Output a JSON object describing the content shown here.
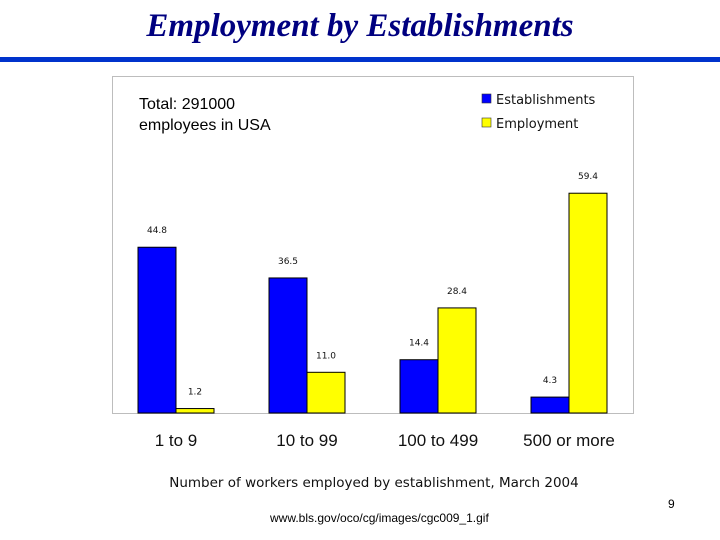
{
  "slide": {
    "title": "Employment by Establishments",
    "note_line1": "Total: 291000",
    "note_line2": "employees in USA",
    "source": "www.bls.gov/oco/cg/images/cgc009_1.gif",
    "page_number": "9"
  },
  "colors": {
    "establishments": "#0000ff",
    "employment": "#ffff00",
    "title": "#000080",
    "rule": "#0033cc"
  },
  "chart_data": {
    "type": "bar",
    "title": "",
    "categories": [
      "1 to 9",
      "10 to 99",
      "100 to 499",
      "500 or more"
    ],
    "series": [
      {
        "name": "Establishments",
        "values": [
          44.8,
          36.5,
          14.4,
          4.3
        ],
        "labels": [
          "44.8",
          "36.5",
          "14.4",
          "4.3"
        ]
      },
      {
        "name": "Employment",
        "values": [
          1.2,
          11.0,
          28.4,
          59.4
        ],
        "labels": [
          "1.2",
          "11.0",
          "28.4",
          "59.4"
        ]
      }
    ],
    "xlabel": "Number of workers employed by establishment, March 2004",
    "ylabel": "",
    "ylim": [
      0,
      60
    ],
    "grid": false,
    "legend": "top-right"
  }
}
